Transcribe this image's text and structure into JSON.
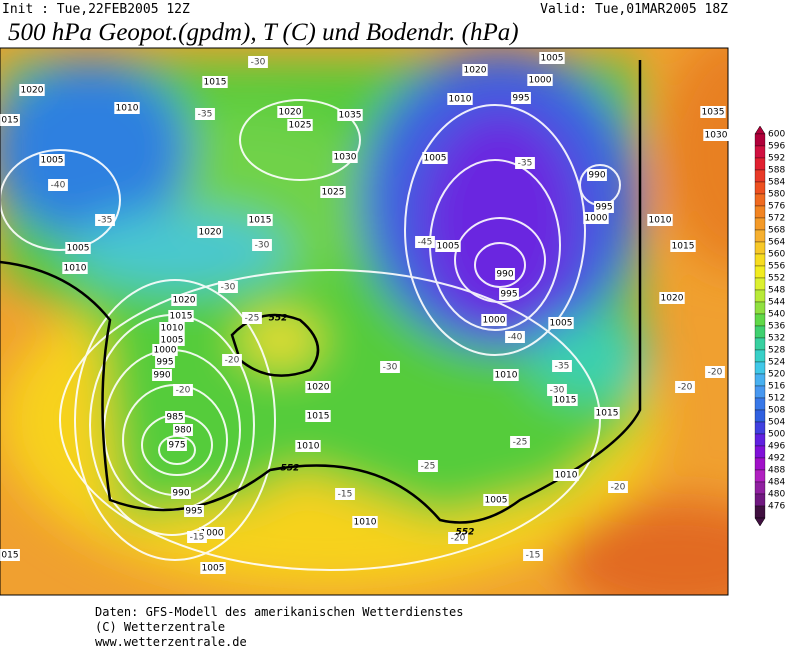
{
  "header": {
    "init": "Init : Tue,22FEB2005 12Z",
    "valid": "Valid: Tue,01MAR2005 18Z",
    "title": "500 hPa Geopot.(gpdm), T (C) und Bodendr. (hPa)"
  },
  "map": {
    "isobar_labels": [
      "1020",
      "1015",
      "015",
      "1010",
      "1020",
      "1025",
      "1035",
      "1020",
      "1005",
      "1000",
      "1010",
      "995",
      "1005",
      "1030",
      "1005",
      "990",
      "995",
      "1000",
      "1025",
      "1015",
      "1020",
      "1010",
      "1015",
      "1005",
      "1010",
      "1005",
      "990",
      "995",
      "1020",
      "1015",
      "1010",
      "1005",
      "1000",
      "995",
      "990",
      "1020",
      "1000",
      "1005",
      "1020",
      "1010",
      "1015",
      "1015",
      "985",
      "980",
      "975",
      "1015",
      "1010",
      "1010",
      "990",
      "995",
      "1005",
      "1010",
      "1000",
      "1005",
      "015",
      "1035",
      "1030"
    ],
    "temperature_labels": [
      "-30",
      "-35",
      "-40",
      "-35",
      "-30",
      "-30",
      "-25",
      "-20",
      "-20",
      "-35",
      "-45",
      "-40",
      "-35",
      "-30",
      "-30",
      "-25",
      "-25",
      "-20",
      "-20",
      "-15",
      "-20",
      "-20",
      "-15",
      "-15"
    ],
    "contour_552_labels": [
      "552",
      "552",
      "552"
    ]
  },
  "colorbar": {
    "labels": [
      600,
      596,
      592,
      588,
      584,
      580,
      576,
      572,
      568,
      564,
      560,
      556,
      552,
      548,
      544,
      540,
      536,
      532,
      528,
      524,
      520,
      516,
      512,
      508,
      504,
      500,
      496,
      492,
      488,
      484,
      480,
      476
    ]
  },
  "footer": {
    "lines": [
      "Daten: GFS-Modell des amerikanischen Wetterdienstes",
      "(C) Wetterzentrale",
      "www.wetterzentrale.de"
    ]
  }
}
